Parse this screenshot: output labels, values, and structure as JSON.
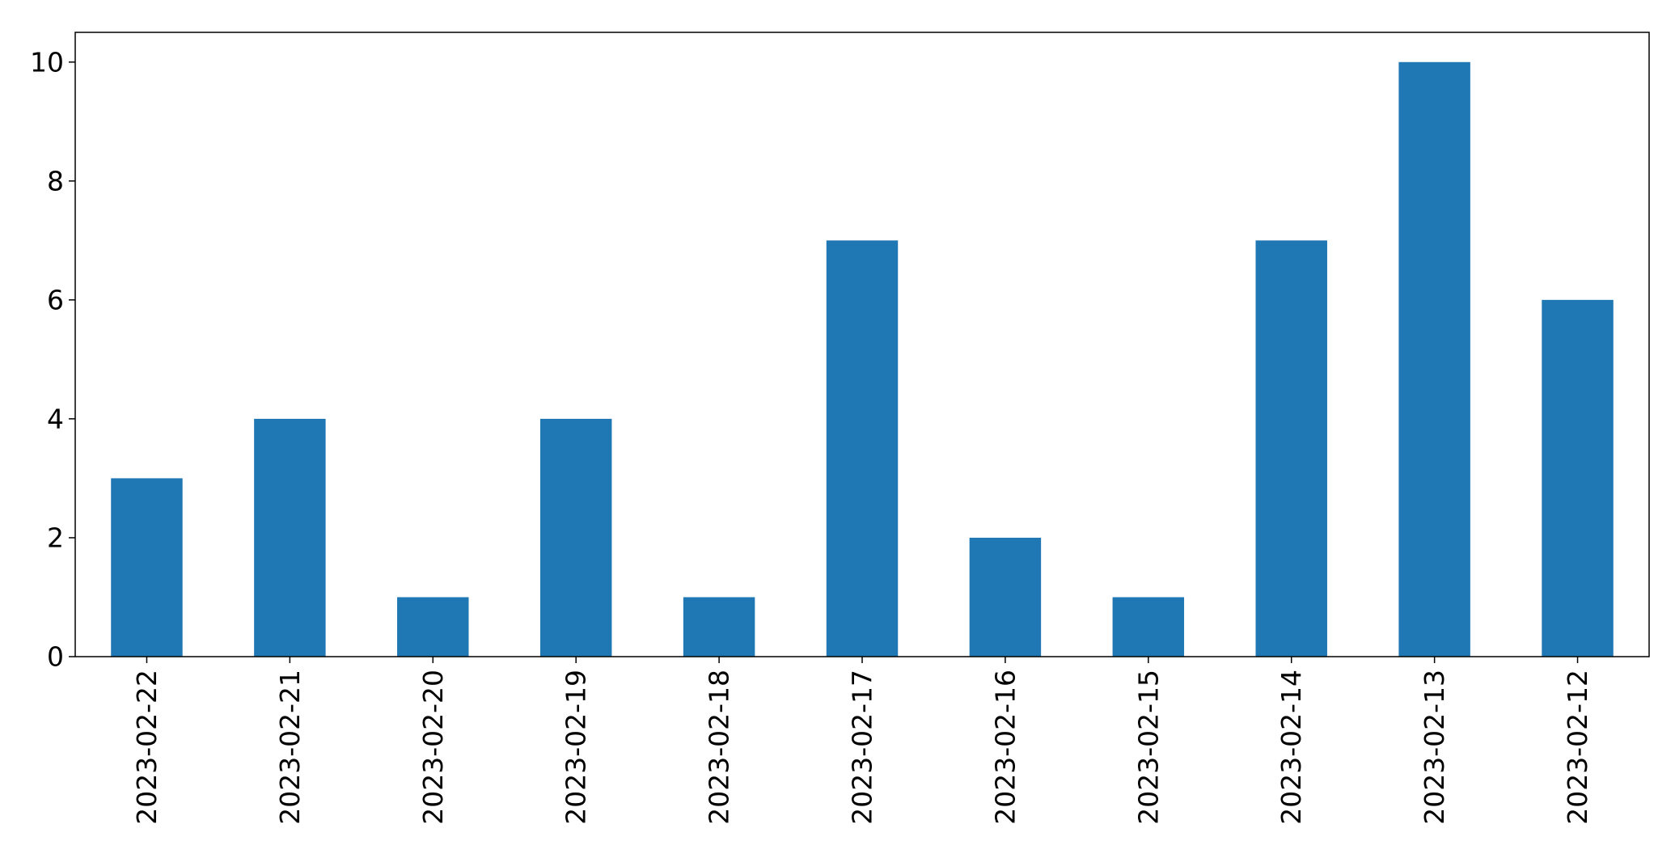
{
  "chart_data": {
    "type": "bar",
    "categories": [
      "2023-02-22",
      "2023-02-21",
      "2023-02-20",
      "2023-02-19",
      "2023-02-18",
      "2023-02-17",
      "2023-02-16",
      "2023-02-15",
      "2023-02-14",
      "2023-02-13",
      "2023-02-12"
    ],
    "series": [
      {
        "values": [
          3,
          4,
          1,
          4,
          1,
          7,
          2,
          1,
          7,
          10,
          6
        ]
      }
    ],
    "title": "",
    "xlabel": "",
    "ylabel": "",
    "ylim": [
      0,
      10.5
    ],
    "yticks": [
      0,
      2,
      4,
      6,
      8,
      10
    ],
    "x_tick_rotation": "vertical",
    "grid": false,
    "legend": "none",
    "colors": {
      "bar": "#1f77b4",
      "axes": "#000000"
    }
  }
}
